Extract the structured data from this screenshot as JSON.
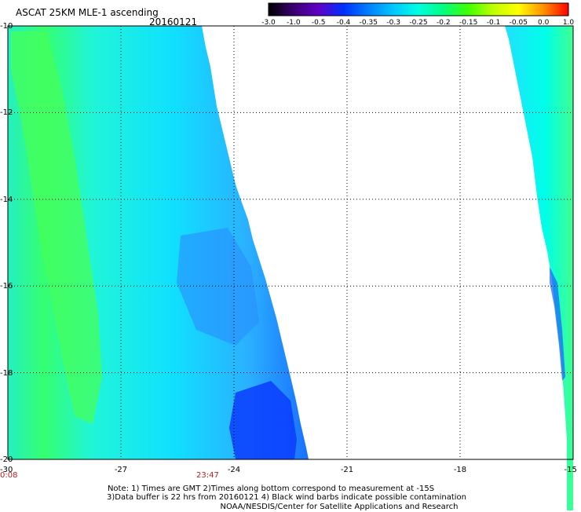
{
  "header": {
    "title": "ASCAT 25KM MLE-1 ascending",
    "date": "20160121"
  },
  "colorbar": {
    "labels": [
      "-3.0",
      "-1.0",
      "-0.5",
      "-0.4",
      "-0.35",
      "-0.3",
      "-0.25",
      "-0.2",
      "-0.15",
      "-0.1",
      "-0.05",
      "0.0",
      "1.0"
    ],
    "colors": [
      "#000000",
      "#3a0070",
      "#6000c8",
      "#0030ff",
      "#0080ff",
      "#00c8ff",
      "#00ffe0",
      "#00ff80",
      "#40ff00",
      "#c0ff00",
      "#ffff00",
      "#ff9000",
      "#ff0000"
    ]
  },
  "map": {
    "y_ticks": [
      "-10",
      "-12",
      "-14",
      "-16",
      "-18",
      "-20"
    ],
    "x_ticks": [
      "-30",
      "-27",
      "-24",
      "-21",
      "-18",
      "-15"
    ],
    "lat_range": [
      -20,
      -10
    ],
    "lon_range": [
      -30,
      -15
    ],
    "swath_colors": {
      "cyan": "#00ffea",
      "green": "#40ff6a",
      "blue": "#1a7cff",
      "deep_blue": "#0a28ff"
    }
  },
  "times": {
    "left": "0:08",
    "right": "23:47"
  },
  "notes": {
    "line1": "Note: 1) Times are GMT 2)Times along bottom correspond to measurement at -15S",
    "line2": "3)Data buffer is 22 hrs from 20160121 4) Black wind barbs indicate possible contamination",
    "line3": "NOAA/NESDIS/Center for Satellite Applications and Research"
  }
}
